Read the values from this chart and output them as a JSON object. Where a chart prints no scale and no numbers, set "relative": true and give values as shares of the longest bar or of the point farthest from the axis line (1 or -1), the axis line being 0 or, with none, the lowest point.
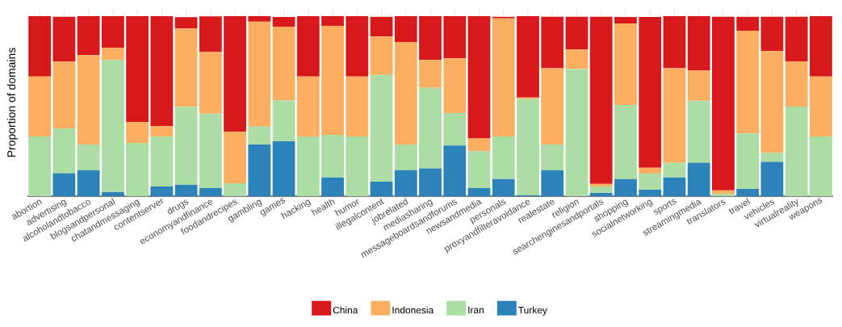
{
  "chart_data": {
    "type": "bar",
    "ylabel": "Proportion of domains",
    "relative": true,
    "stacked": true,
    "grid": "x",
    "legend": "bottom",
    "categories": [
      "abortion",
      "advertising",
      "alcoholandtobacco",
      "blogsandpersonal",
      "chatandmessaging",
      "contentserver",
      "drugs",
      "economyandfinance",
      "foodandrecipes",
      "gambling",
      "games",
      "hacking",
      "health",
      "humor",
      "illegalcontent",
      "jobrelated",
      "mediasharing",
      "messageboardsandforums",
      "newsandmedia",
      "personals",
      "proxyandfilteravoidance",
      "realestate",
      "religion",
      "searchenginesandportals",
      "shopping",
      "socialnetworking",
      "sports",
      "streamingmedia",
      "translators",
      "travel",
      "vehicles",
      "virtualreality",
      "weapons"
    ],
    "series": [
      {
        "name": "Turkey",
        "color": "#2b83ba",
        "values": [
          0,
          0.127,
          0.145,
          0.023,
          0,
          0.054,
          0.063,
          0.045,
          0,
          0.287,
          0.305,
          0,
          0.104,
          0,
          0.081,
          0.145,
          0.154,
          0.281,
          0.045,
          0.095,
          0.005,
          0.145,
          0,
          0.018,
          0.095,
          0.036,
          0.104,
          0.186,
          0,
          0.041,
          0.19,
          0,
          0
        ]
      },
      {
        "name": "Iran",
        "color": "#abdda4",
        "values": [
          0.332,
          0.25,
          0.142,
          0.733,
          0.296,
          0.278,
          0.434,
          0.413,
          0.072,
          0.1,
          0.226,
          0.332,
          0.237,
          0.332,
          0.593,
          0.142,
          0.448,
          0.181,
          0.205,
          0.237,
          0.535,
          0.142,
          0.706,
          0.036,
          0.412,
          0.09,
          0.081,
          0.344,
          0.014,
          0.308,
          0.05,
          0.498,
          0.332
        ]
      },
      {
        "name": "Indonesia",
        "color": "#fdae61",
        "values": [
          0.333,
          0.37,
          0.496,
          0.068,
          0.116,
          0.057,
          0.434,
          0.342,
          0.285,
          0.582,
          0.41,
          0.333,
          0.605,
          0.333,
          0.213,
          0.569,
          0.154,
          0.303,
          0.071,
          0.655,
          0.008,
          0.424,
          0.109,
          0.014,
          0.452,
          0.032,
          0.525,
          0.167,
          0.018,
          0.57,
          0.566,
          0.249,
          0.333
        ]
      },
      {
        "name": "China",
        "color": "#d7191c",
        "values": [
          0.335,
          0.249,
          0.217,
          0.176,
          0.588,
          0.611,
          0.063,
          0.199,
          0.643,
          0.031,
          0.054,
          0.335,
          0.054,
          0.335,
          0.109,
          0.144,
          0.244,
          0.235,
          0.679,
          0.009,
          0.452,
          0.285,
          0.181,
          0.928,
          0.036,
          0.837,
          0.29,
          0.303,
          0.964,
          0.077,
          0.19,
          0.249,
          0.335
        ]
      }
    ]
  }
}
